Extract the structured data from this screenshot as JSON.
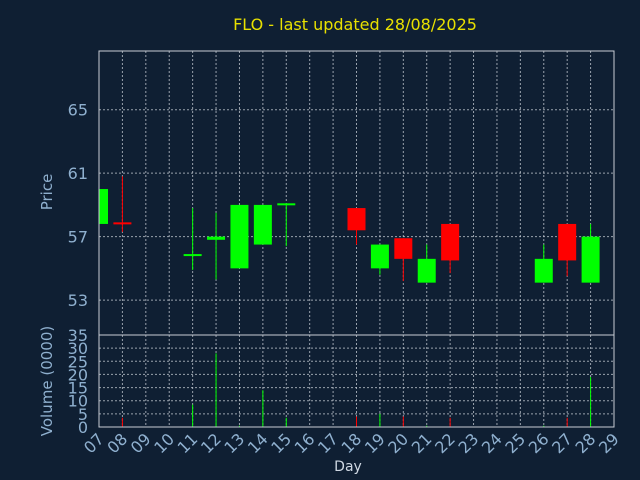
{
  "chart_data": {
    "type": "candlestick",
    "title": "FLO - last updated 28/08/2025",
    "xlabel": "Day",
    "price_ylabel": "Price",
    "volume_ylabel": "Volume (0000)",
    "x_ticks": [
      "07",
      "08",
      "09",
      "10",
      "11",
      "12",
      "13",
      "14",
      "15",
      "16",
      "17",
      "18",
      "19",
      "20",
      "21",
      "22",
      "23",
      "24",
      "25",
      "26",
      "27",
      "28",
      "29"
    ],
    "price_ticks": [
      53,
      57,
      61,
      65
    ],
    "price_bottom_label": "35",
    "price_ylim": [
      50.8,
      68.7
    ],
    "volume_ticks": [
      0,
      5,
      10,
      15,
      20,
      25,
      30
    ],
    "volume_ylim": [
      0,
      35
    ],
    "candles": [
      {
        "day": "07",
        "open": 57.8,
        "close": 60.0,
        "high": 60.0,
        "low": 57.8,
        "volume": 0
      },
      {
        "day": "08",
        "open": 57.9,
        "close": 57.8,
        "high": 60.8,
        "low": 57.3,
        "volume": 3.5
      },
      {
        "day": "11",
        "open": 55.9,
        "close": 55.9,
        "high": 58.8,
        "low": 54.9,
        "volume": 8.5
      },
      {
        "day": "12",
        "open": 56.8,
        "close": 57.0,
        "high": 58.5,
        "low": 54.3,
        "volume": 28
      },
      {
        "day": "13",
        "open": 55.0,
        "close": 59.0,
        "high": 59.0,
        "low": 55.0,
        "volume": 0.5
      },
      {
        "day": "14",
        "open": 56.5,
        "close": 59.0,
        "high": 59.0,
        "low": 56.5,
        "volume": 14
      },
      {
        "day": "15",
        "open": 59.0,
        "close": 59.1,
        "high": 59.1,
        "low": 56.4,
        "volume": 3.5
      },
      {
        "day": "18",
        "open": 58.8,
        "close": 57.4,
        "high": 58.8,
        "low": 56.5,
        "volume": 4
      },
      {
        "day": "19",
        "open": 55.0,
        "close": 56.5,
        "high": 56.5,
        "low": 54.6,
        "volume": 5
      },
      {
        "day": "20",
        "open": 56.9,
        "close": 55.6,
        "high": 56.9,
        "low": 54.2,
        "volume": 4
      },
      {
        "day": "21",
        "open": 54.1,
        "close": 55.6,
        "high": 56.5,
        "low": 54.1,
        "volume": 0.5
      },
      {
        "day": "22",
        "open": 57.8,
        "close": 55.5,
        "high": 57.8,
        "low": 54.7,
        "volume": 3.5
      },
      {
        "day": "26",
        "open": 54.1,
        "close": 55.6,
        "high": 56.5,
        "low": 54.1,
        "volume": 0.5
      },
      {
        "day": "27",
        "open": 57.8,
        "close": 55.5,
        "high": 57.8,
        "low": 54.5,
        "volume": 3.5
      },
      {
        "day": "28",
        "open": 54.1,
        "close": 57.0,
        "high": 57.8,
        "low": 54.1,
        "volume": 19
      }
    ],
    "colors": {
      "up": "#00ff00",
      "down": "#ff0000",
      "background": "#0f1f33",
      "grid": "#c8ced6",
      "title": "#e8e000",
      "ticks": "#8fb0cf"
    }
  }
}
